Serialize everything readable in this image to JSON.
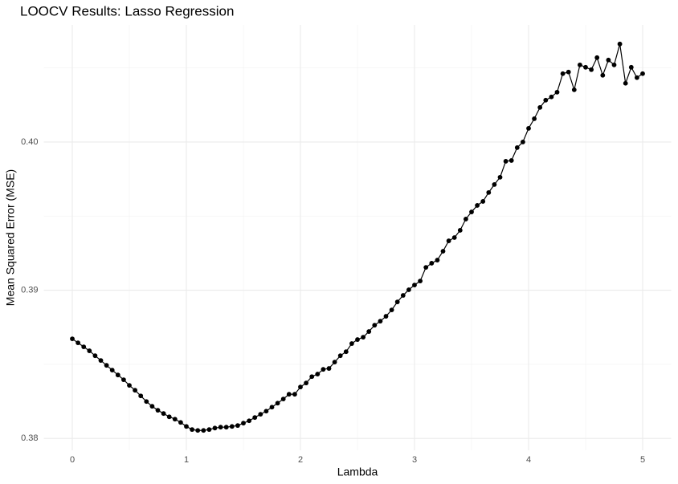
{
  "chart_data": {
    "type": "line",
    "title": "LOOCV Results: Lasso Regression",
    "xlabel": "Lambda",
    "ylabel": "Mean Squared Error (MSE)",
    "x": [
      0,
      0.05,
      0.1,
      0.15,
      0.2,
      0.25,
      0.3,
      0.35,
      0.4,
      0.45,
      0.5,
      0.55,
      0.6,
      0.65,
      0.7,
      0.75,
      0.8,
      0.85,
      0.9,
      0.95,
      1,
      1.05,
      1.1,
      1.15,
      1.2,
      1.25,
      1.3,
      1.35,
      1.4,
      1.45,
      1.5,
      1.55,
      1.6,
      1.65,
      1.7,
      1.75,
      1.8,
      1.85,
      1.9,
      1.95,
      2,
      2.05,
      2.1,
      2.15,
      2.2,
      2.25,
      2.3,
      2.35,
      2.4,
      2.45,
      2.5,
      2.55,
      2.6,
      2.65,
      2.7,
      2.75,
      2.8,
      2.85,
      2.9,
      2.95,
      3,
      3.05,
      3.1,
      3.15,
      3.2,
      3.25,
      3.3,
      3.35,
      3.4,
      3.45,
      3.5,
      3.55,
      3.6,
      3.65,
      3.7,
      3.75,
      3.8,
      3.85,
      3.9,
      3.95,
      4,
      4.05,
      4.1,
      4.15,
      4.2,
      4.25,
      4.3,
      4.35,
      4.4,
      4.45,
      4.5,
      4.55,
      4.6,
      4.65,
      4.7,
      4.75,
      4.8,
      4.85,
      4.9,
      4.95,
      5
    ],
    "values": [
      0.38672,
      0.38645,
      0.38618,
      0.38591,
      0.38558,
      0.38526,
      0.38493,
      0.38461,
      0.38428,
      0.38396,
      0.38358,
      0.38325,
      0.38287,
      0.38249,
      0.38217,
      0.3819,
      0.38168,
      0.38146,
      0.3813,
      0.38108,
      0.38081,
      0.3806,
      0.38054,
      0.38054,
      0.3806,
      0.3807,
      0.38076,
      0.38076,
      0.38081,
      0.38087,
      0.38103,
      0.38119,
      0.38141,
      0.38163,
      0.38184,
      0.38211,
      0.38238,
      0.38266,
      0.38298,
      0.38298,
      0.38347,
      0.38374,
      0.38417,
      0.38434,
      0.38466,
      0.38472,
      0.38515,
      0.38558,
      0.38585,
      0.3864,
      0.38667,
      0.38683,
      0.38721,
      0.38764,
      0.38791,
      0.38824,
      0.38867,
      0.38921,
      0.38965,
      0.39003,
      0.39035,
      0.39062,
      0.39154,
      0.39182,
      0.39203,
      0.39263,
      0.39333,
      0.39355,
      0.39404,
      0.3948,
      0.39528,
      0.39572,
      0.39599,
      0.39659,
      0.39713,
      0.39762,
      0.3987,
      0.39875,
      0.39962,
      0.4,
      0.40092,
      0.40157,
      0.40233,
      0.40282,
      0.40304,
      0.40336,
      0.40461,
      0.40472,
      0.40352,
      0.4052,
      0.40504,
      0.40488,
      0.40569,
      0.4045,
      0.40553,
      0.4052,
      0.40661,
      0.40396,
      0.40504,
      0.40434,
      0.40461
    ],
    "color": "#000000",
    "xlim": [
      -0.25,
      5.25
    ],
    "xticks": [
      0,
      1,
      2,
      3,
      4,
      5
    ],
    "ylim": [
      0.3792,
      0.4079
    ],
    "yticks": [
      0.38,
      0.39,
      {
        "value": 0.4,
        "label": "0.40"
      }
    ],
    "grid": true,
    "minor_grid": true
  }
}
